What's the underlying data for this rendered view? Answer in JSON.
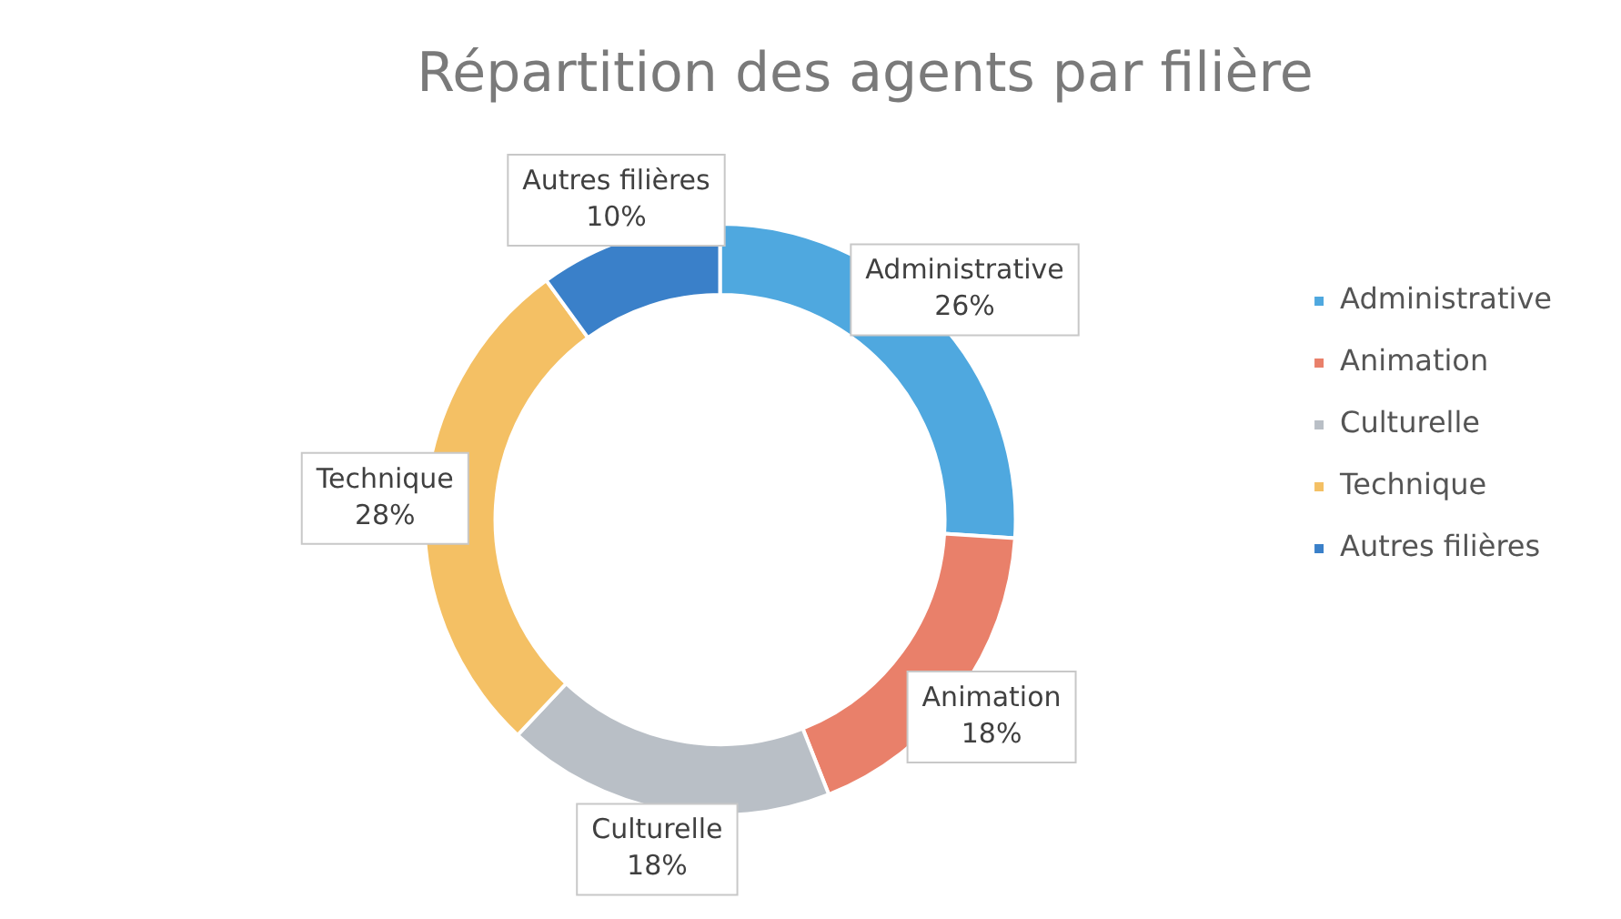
{
  "chart_data": {
    "type": "donut",
    "title": "Répartition des agents par filière",
    "categories": [
      "Administrative",
      "Animation",
      "Culturelle",
      "Technique",
      "Autres filières"
    ],
    "values": [
      26,
      18,
      18,
      28,
      10
    ],
    "value_labels": [
      "26%",
      "18%",
      "18%",
      "28%",
      "10%"
    ],
    "colors": [
      "#4fa8df",
      "#e9806a",
      "#b9bfc6",
      "#f4c064",
      "#3a80c9"
    ],
    "legend": "right"
  }
}
